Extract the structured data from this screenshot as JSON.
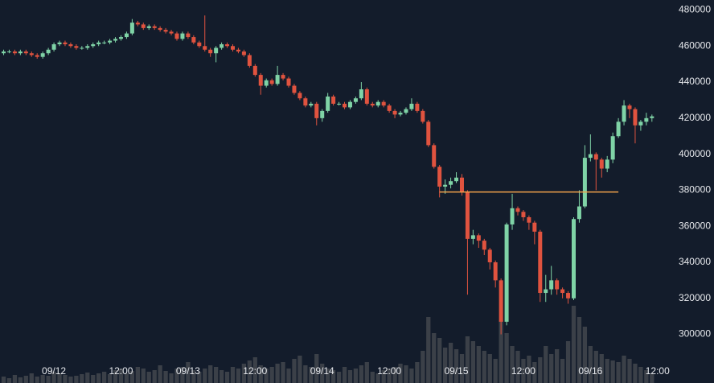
{
  "chart_data": {
    "type": "candlestick",
    "up_color": "#7fd3a6",
    "down_color": "#e0533f",
    "volume_color": "#3b4048",
    "ylim": [
      273000,
      482000
    ],
    "yticks": [
      300000,
      320000,
      340000,
      360000,
      380000,
      400000,
      420000,
      440000,
      460000,
      480000
    ],
    "xlim": [
      -0.65,
      120.2
    ],
    "xticks": [
      {
        "value": 9,
        "label": "09/12"
      },
      {
        "value": 21,
        "label": "12:00"
      },
      {
        "value": 33,
        "label": "09/13"
      },
      {
        "value": 45,
        "label": "12:00"
      },
      {
        "value": 57,
        "label": "09/14"
      },
      {
        "value": 69,
        "label": "12:00"
      },
      {
        "value": 81,
        "label": "09/15"
      },
      {
        "value": 93,
        "label": "12:00"
      },
      {
        "value": 105,
        "label": "09/16"
      },
      {
        "value": 117,
        "label": "12:00"
      }
    ],
    "hlines": [
      {
        "value": 379000,
        "x": [
          78,
          110
        ],
        "color": "#f0a04b"
      }
    ],
    "open": [
      456000,
      457000,
      457000,
      456000,
      457000,
      456000,
      455000,
      454000,
      456000,
      458000,
      461000,
      462000,
      461000,
      460000,
      459000,
      459000,
      460000,
      461000,
      462000,
      462000,
      463000,
      464000,
      465000,
      467000,
      473000,
      472000,
      470000,
      471000,
      470000,
      469000,
      468000,
      467000,
      464000,
      467000,
      465000,
      462000,
      460000,
      458000,
      456000,
      459000,
      461000,
      460000,
      458000,
      457000,
      455000,
      449000,
      444000,
      438000,
      441000,
      439000,
      444000,
      442000,
      438000,
      434000,
      431000,
      427000,
      428000,
      420000,
      424000,
      432000,
      428000,
      428000,
      426000,
      429000,
      431000,
      436000,
      428000,
      427000,
      429000,
      427000,
      424000,
      422000,
      423000,
      425000,
      428000,
      424000,
      418000,
      405000,
      393000,
      382000,
      383000,
      385000,
      387000,
      379000,
      353000,
      355000,
      352000,
      347000,
      340000,
      330000,
      307000,
      361000,
      370000,
      368000,
      365000,
      362000,
      357000,
      323000,
      325000,
      330000,
      325000,
      323000,
      320000,
      364000,
      371000,
      398000,
      400000,
      397000,
      392000,
      397000,
      410000,
      418000,
      427000,
      425000,
      416000,
      418000,
      420000
    ],
    "high": [
      458000,
      458000,
      458000,
      458000,
      458000,
      457000,
      456000,
      457000,
      459000,
      462000,
      463000,
      463000,
      462000,
      461000,
      460000,
      461000,
      462000,
      463000,
      463000,
      464000,
      465000,
      466000,
      468000,
      475000,
      474000,
      473000,
      472000,
      472000,
      471000,
      470000,
      469000,
      468000,
      468000,
      468000,
      466000,
      463000,
      477000,
      459000,
      460000,
      462000,
      462000,
      461000,
      459000,
      458000,
      456000,
      450000,
      445000,
      442000,
      442000,
      449000,
      445000,
      443000,
      439000,
      435000,
      432000,
      429000,
      429000,
      425000,
      434000,
      433000,
      429000,
      429000,
      430000,
      432000,
      440000,
      437000,
      429000,
      430000,
      430000,
      428000,
      425000,
      424000,
      426000,
      431000,
      429000,
      425000,
      419000,
      406000,
      394000,
      386000,
      387000,
      390000,
      389000,
      380000,
      358000,
      356000,
      353000,
      348000,
      341000,
      331000,
      362000,
      378000,
      371000,
      369000,
      366000,
      363000,
      358000,
      333000,
      338000,
      331000,
      326000,
      324000,
      365000,
      380000,
      405000,
      411000,
      401000,
      398000,
      399000,
      412000,
      420000,
      430000,
      428000,
      426000,
      419000,
      423000,
      422000
    ],
    "low": [
      455000,
      456000,
      455000,
      455000,
      455000,
      454000,
      453000,
      453000,
      455000,
      457000,
      460000,
      460000,
      459000,
      458000,
      458000,
      458000,
      459000,
      460000,
      461000,
      461000,
      462000,
      463000,
      464000,
      466000,
      471000,
      469000,
      469000,
      469000,
      468000,
      467000,
      466000,
      463000,
      463000,
      464000,
      461000,
      459000,
      457000,
      454000,
      451000,
      458000,
      459000,
      457000,
      456000,
      454000,
      448000,
      443000,
      433000,
      437000,
      438000,
      438000,
      441000,
      437000,
      433000,
      430000,
      426000,
      426000,
      416000,
      418000,
      423000,
      427000,
      427000,
      425000,
      425000,
      428000,
      430000,
      427000,
      426000,
      426000,
      426000,
      423000,
      420000,
      421000,
      422000,
      424000,
      423000,
      417000,
      404000,
      392000,
      376000,
      378000,
      381000,
      384000,
      377000,
      322000,
      350000,
      348000,
      344000,
      336000,
      326000,
      300000,
      305000,
      358000,
      366000,
      363000,
      358000,
      350000,
      318000,
      318000,
      322000,
      322000,
      320000,
      317000,
      319000,
      362000,
      370000,
      396000,
      380000,
      387000,
      390000,
      395000,
      409000,
      416000,
      420000,
      406000,
      413000,
      416000,
      418000
    ],
    "close": [
      457000,
      457000,
      456000,
      457000,
      456000,
      455000,
      454000,
      456000,
      458000,
      461000,
      462000,
      461000,
      460000,
      459000,
      459000,
      460000,
      461000,
      462000,
      462000,
      463000,
      464000,
      465000,
      467000,
      473000,
      472000,
      470000,
      471000,
      470000,
      469000,
      468000,
      467000,
      464000,
      467000,
      465000,
      462000,
      460000,
      458000,
      456000,
      459000,
      461000,
      460000,
      458000,
      457000,
      455000,
      449000,
      444000,
      438000,
      441000,
      439000,
      444000,
      442000,
      438000,
      434000,
      431000,
      427000,
      428000,
      420000,
      424000,
      432000,
      428000,
      428000,
      426000,
      429000,
      431000,
      436000,
      428000,
      427000,
      429000,
      427000,
      424000,
      422000,
      423000,
      425000,
      428000,
      424000,
      418000,
      405000,
      393000,
      382000,
      383000,
      385000,
      387000,
      379000,
      353000,
      355000,
      352000,
      347000,
      340000,
      330000,
      307000,
      361000,
      370000,
      368000,
      365000,
      362000,
      357000,
      323000,
      325000,
      330000,
      325000,
      323000,
      320000,
      364000,
      371000,
      398000,
      400000,
      397000,
      392000,
      397000,
      410000,
      418000,
      427000,
      425000,
      416000,
      418000,
      420000,
      421000
    ],
    "volume": [
      8,
      6,
      10,
      7,
      9,
      12,
      8,
      10,
      9,
      14,
      12,
      10,
      8,
      9,
      11,
      13,
      10,
      12,
      14,
      11,
      16,
      18,
      12,
      15,
      20,
      18,
      14,
      16,
      22,
      15,
      12,
      18,
      20,
      26,
      16,
      14,
      18,
      22,
      20,
      16,
      14,
      20,
      18,
      24,
      28,
      32,
      22,
      18,
      20,
      24,
      26,
      18,
      30,
      34,
      22,
      20,
      36,
      24,
      18,
      16,
      14,
      20,
      16,
      18,
      22,
      26,
      14,
      12,
      16,
      18,
      20,
      24,
      22,
      18,
      26,
      40,
      82,
      62,
      56,
      44,
      50,
      42,
      36,
      58,
      52,
      46,
      40,
      36,
      30,
      78,
      62,
      46,
      40,
      30,
      34,
      26,
      32,
      46,
      36,
      42,
      30,
      52,
      96,
      82,
      70,
      46,
      40,
      36,
      30,
      28,
      26,
      34,
      30,
      24,
      20,
      16,
      12
    ]
  }
}
